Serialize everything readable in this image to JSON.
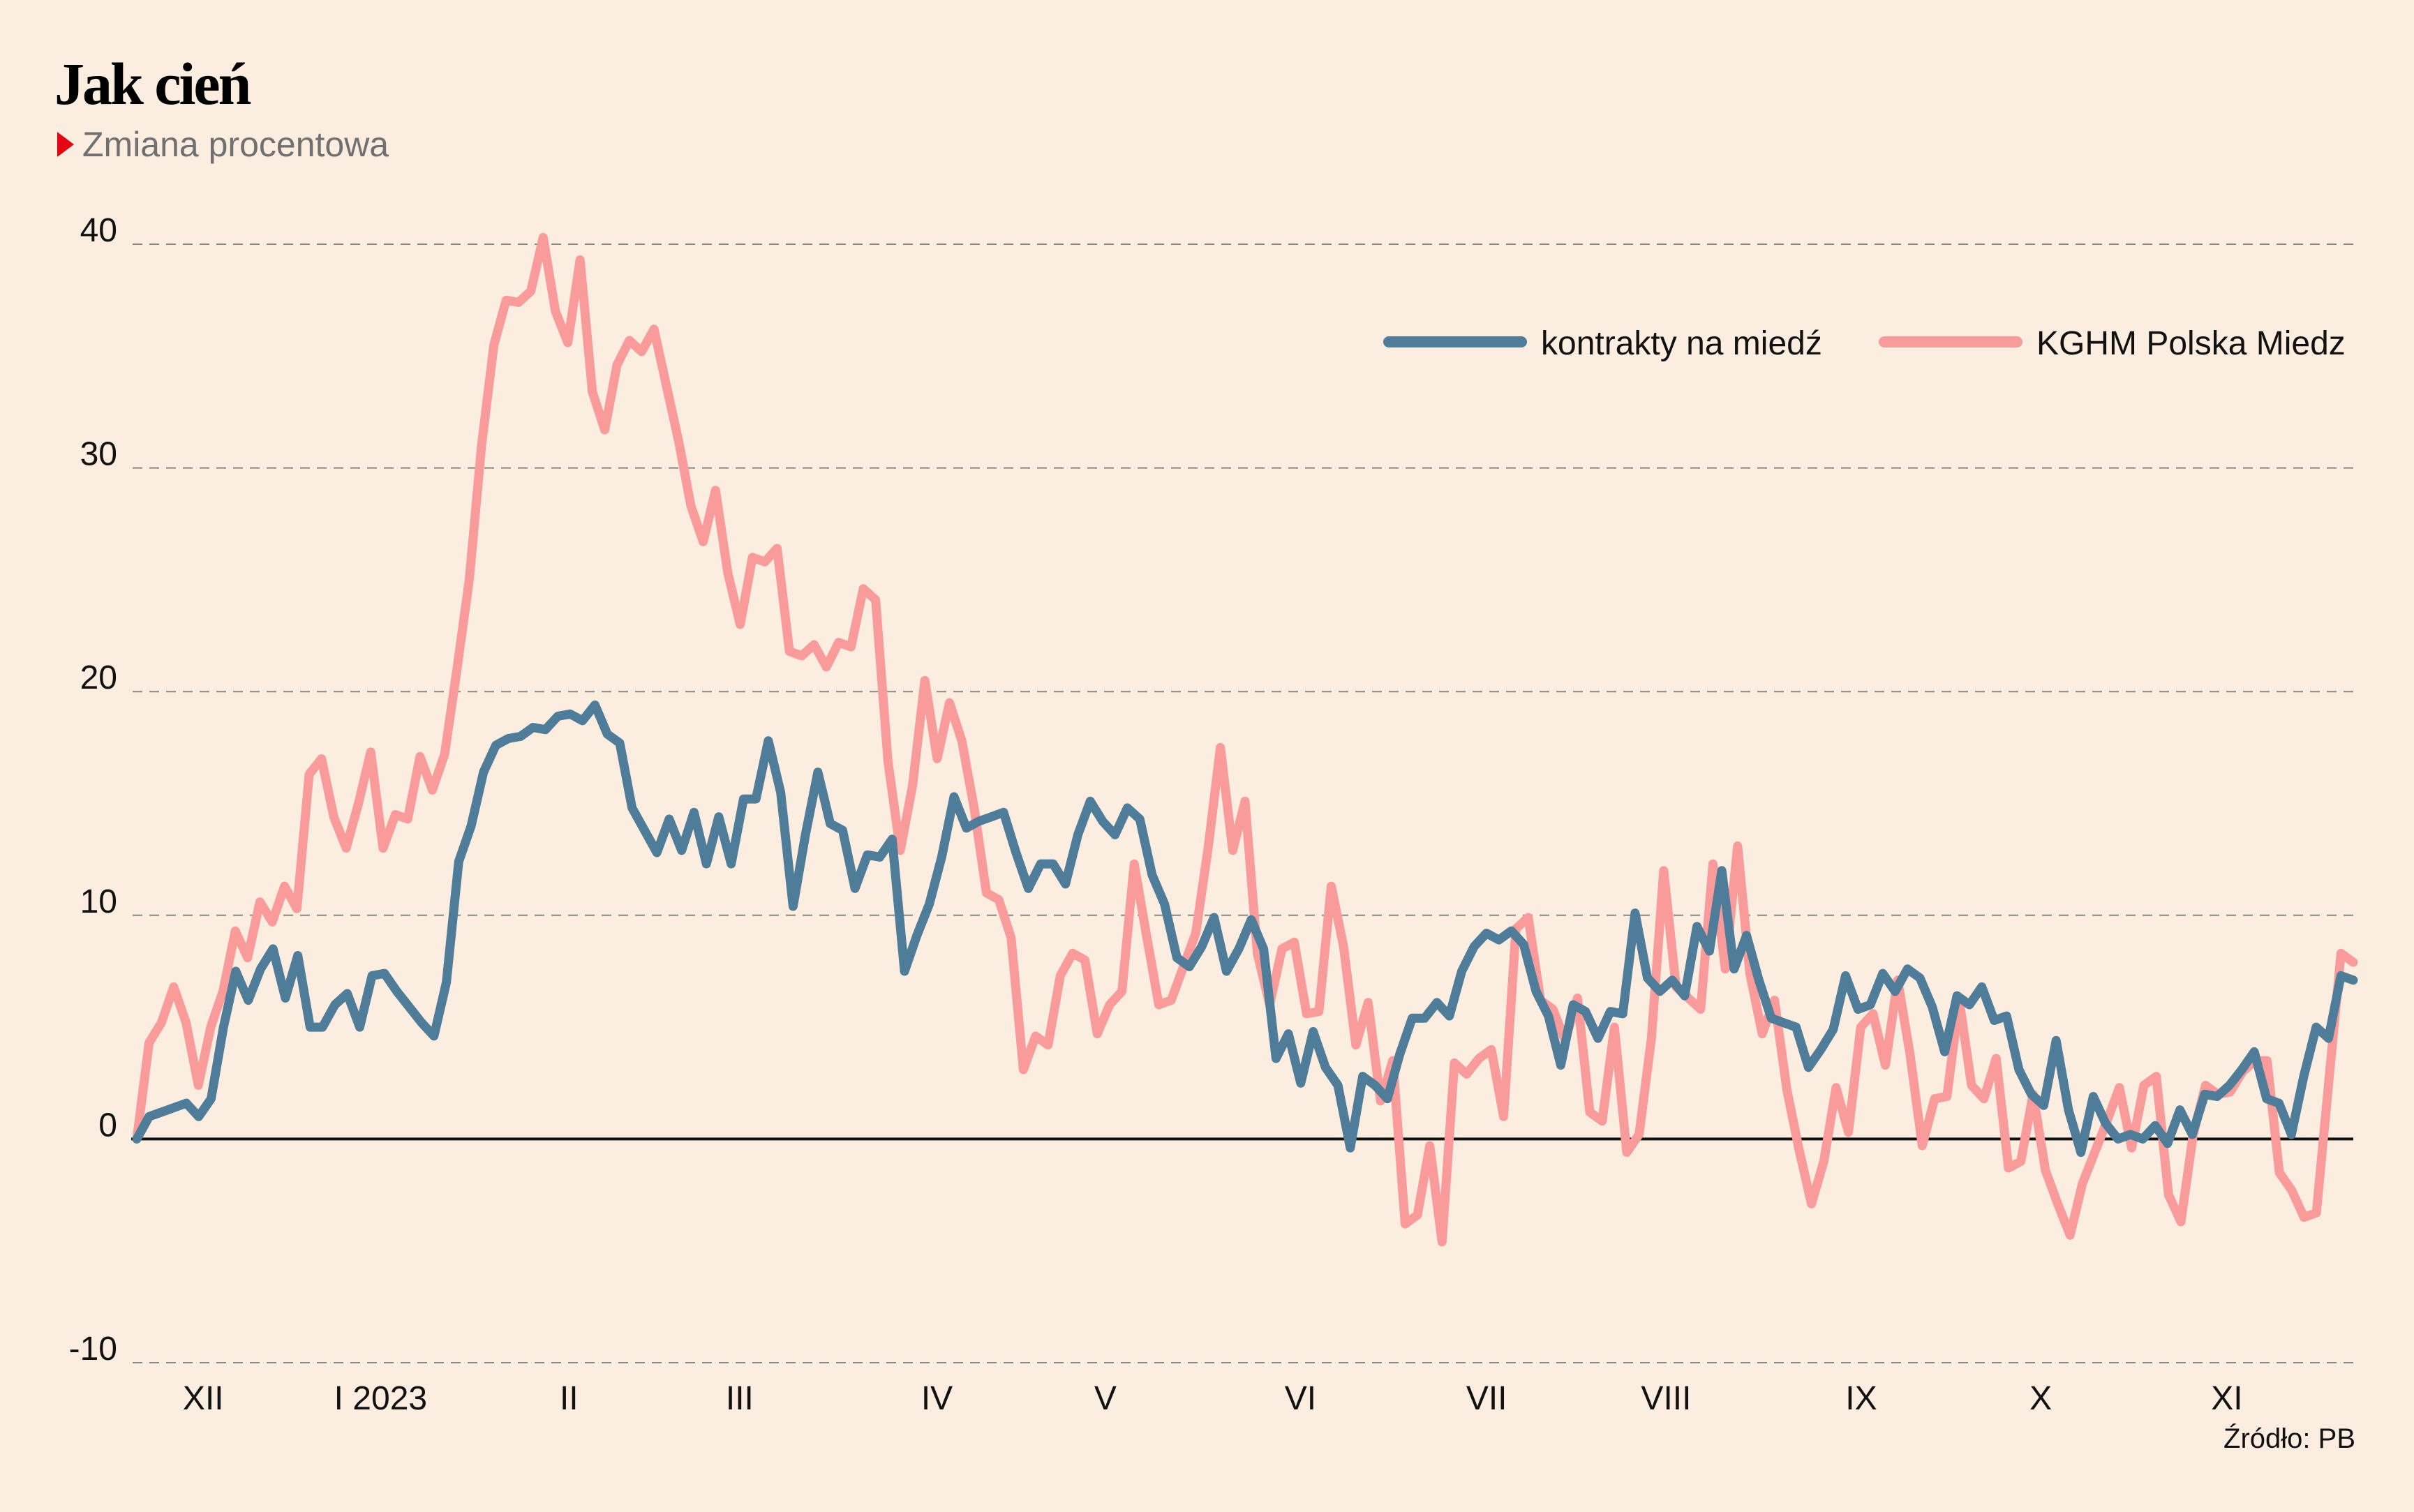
{
  "header": {
    "title": "Jak cień",
    "subtitle": "Zmiana procentowa",
    "source": "Źródło: PB"
  },
  "colors": {
    "background": "#fbede0",
    "copper_futures": "#4f7d99",
    "kghm": "#f99b9b",
    "accent_marker": "#e30613"
  },
  "chart_data": {
    "type": "line",
    "title": "Jak cień",
    "subtitle": "Zmiana procentowa",
    "xlabel": "",
    "ylabel": "",
    "ylim": [
      -10,
      40
    ],
    "yticks": [
      40,
      30,
      20,
      10,
      0,
      -10
    ],
    "grid": true,
    "legend_position": "top-right",
    "x_tick_labels": [
      {
        "label": "XII",
        "pos": 0.03
      },
      {
        "label": "I 2023",
        "pos": 0.11
      },
      {
        "label": "II",
        "pos": 0.195
      },
      {
        "label": "III",
        "pos": 0.272
      },
      {
        "label": "IV",
        "pos": 0.361
      },
      {
        "label": "V",
        "pos": 0.437
      },
      {
        "label": "VI",
        "pos": 0.525
      },
      {
        "label": "VII",
        "pos": 0.609
      },
      {
        "label": "VIII",
        "pos": 0.69
      },
      {
        "label": "IX",
        "pos": 0.778
      },
      {
        "label": "X",
        "pos": 0.859
      },
      {
        "label": "XI",
        "pos": 0.943
      }
    ],
    "series": [
      {
        "name": "kontrakty na miedź",
        "color": "#4f7d99",
        "values": [
          0,
          1.0,
          1.2,
          1.4,
          1.6,
          1.0,
          1.8,
          5.0,
          7.5,
          6.2,
          7.6,
          8.5,
          6.3,
          8.2,
          5.0,
          5.0,
          6.0,
          6.5,
          5.0,
          7.3,
          7.4,
          6.6,
          5.9,
          5.2,
          4.6,
          7.0,
          12.4,
          14.0,
          16.4,
          17.6,
          17.9,
          18.0,
          18.4,
          18.3,
          18.9,
          19.0,
          18.7,
          19.4,
          18.1,
          17.7,
          14.8,
          13.8,
          12.8,
          14.3,
          12.9,
          14.6,
          12.3,
          14.4,
          12.3,
          15.2,
          15.2,
          17.8,
          15.5,
          10.4,
          13.6,
          16.4,
          14.1,
          13.8,
          11.2,
          12.7,
          12.6,
          13.4,
          7.5,
          9.1,
          10.5,
          12.6,
          15.3,
          13.9,
          14.2,
          14.4,
          14.6,
          12.8,
          11.2,
          12.3,
          12.3,
          11.4,
          13.6,
          15.1,
          14.2,
          13.6,
          14.8,
          14.3,
          11.8,
          10.5,
          8.1,
          7.7,
          8.6,
          9.9,
          7.5,
          8.5,
          9.8,
          8.5,
          3.6,
          4.7,
          2.5,
          4.8,
          3.2,
          2.4,
          -0.4,
          2.8,
          2.4,
          1.8,
          3.8,
          5.4,
          5.4,
          6.1,
          5.5,
          7.5,
          8.6,
          9.2,
          8.9,
          9.3,
          8.7,
          6.6,
          5.5,
          3.3,
          6.0,
          5.7,
          4.5,
          5.7,
          5.6,
          10.1,
          7.2,
          6.6,
          7.1,
          6.4,
          9.5,
          8.4,
          12.0,
          7.6,
          9.1,
          7.1,
          5.4,
          5.2,
          5.0,
          3.2,
          4.0,
          4.9,
          7.3,
          5.8,
          6.0,
          7.4,
          6.6,
          7.6,
          7.2,
          5.9,
          3.9,
          6.4,
          6.0,
          6.8,
          5.3,
          5.5,
          3.1,
          2.0,
          1.5,
          4.4,
          1.3,
          -0.6,
          1.9,
          0.7,
          0.0,
          0.2,
          0.0,
          0.6,
          -0.2,
          1.3,
          0.2,
          2.0,
          1.9,
          2.4,
          3.1,
          3.9,
          1.8,
          1.6,
          0.2,
          2.8,
          5.0,
          4.5,
          7.3,
          7.1
        ]
      },
      {
        "name": "KGHM Polska Miedz",
        "color": "#f99b9b",
        "values": [
          0,
          4.3,
          5.2,
          6.8,
          5.2,
          2.4,
          5.0,
          6.6,
          9.3,
          8.1,
          10.6,
          9.7,
          11.3,
          10.3,
          16.3,
          17.0,
          14.4,
          13.0,
          15.0,
          17.3,
          13.0,
          14.5,
          14.3,
          17.1,
          15.6,
          17.2,
          21.0,
          25.0,
          31.0,
          35.5,
          37.5,
          37.4,
          37.9,
          40.3,
          37.0,
          35.6,
          39.3,
          33.4,
          31.7,
          34.6,
          35.7,
          35.2,
          36.2,
          33.7,
          31.2,
          28.3,
          26.7,
          29.0,
          25.3,
          23.0,
          26.0,
          25.8,
          26.4,
          21.8,
          21.6,
          22.1,
          21.1,
          22.2,
          22.0,
          24.6,
          24.1,
          16.9,
          12.9,
          15.8,
          20.5,
          17.0,
          19.5,
          17.8,
          14.8,
          11.0,
          10.7,
          9.0,
          3.1,
          4.6,
          4.2,
          7.3,
          8.3,
          8.0,
          4.7,
          6.0,
          6.6,
          12.3,
          9.1,
          6.0,
          6.2,
          7.7,
          9.2,
          13.0,
          17.5,
          12.9,
          15.1,
          8.3,
          6.0,
          8.5,
          8.8,
          5.6,
          5.7,
          11.3,
          8.6,
          4.2,
          6.1,
          1.7,
          3.5,
          -3.8,
          -3.4,
          -0.3,
          -4.6,
          3.4,
          2.9,
          3.6,
          4.0,
          1.0,
          9.4,
          9.9,
          6.2,
          5.8,
          4.4,
          6.3,
          1.2,
          0.8,
          5.0,
          -0.6,
          0.2,
          4.5,
          12.0,
          6.8,
          6.3,
          5.8,
          12.3,
          7.6,
          13.1,
          7.4,
          4.7,
          6.2,
          2.2,
          -0.5,
          -2.9,
          -1.0,
          2.3,
          0.3,
          5.0,
          5.6,
          3.3,
          7.1,
          3.8,
          -0.3,
          1.8,
          1.9,
          6.2,
          2.4,
          1.8,
          3.6,
          -1.3,
          -1.0,
          2.0,
          -1.4,
          -2.9,
          -4.3,
          -2.0,
          -0.6,
          0.8,
          2.3,
          -0.4,
          2.4,
          2.8,
          -2.5,
          -3.7,
          0.2,
          2.4,
          2.0,
          2.1,
          3.0,
          3.5,
          3.5,
          -1.5,
          -2.3,
          -3.5,
          -3.3,
          2.5,
          8.3,
          7.9
        ]
      }
    ]
  }
}
